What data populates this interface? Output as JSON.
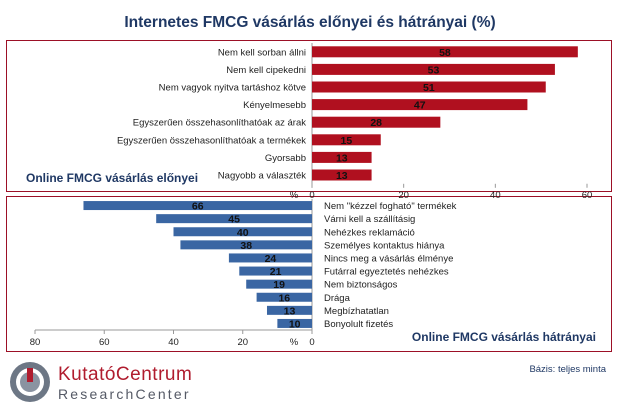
{
  "title": "Internetes FMCG vásárlás előnyei és hátrányai (%)",
  "basis": "Bázis: teljes minta",
  "logo": {
    "line1": "KutatóCentrum",
    "line2": "ResearchCenter"
  },
  "colors": {
    "advantages": "#b0101f",
    "disadvantages": "#3a66a3",
    "border": "#9c1026",
    "title": "#1f3864"
  },
  "chart_data": [
    {
      "type": "bar",
      "orientation": "horizontal",
      "panel_label": "Online FMCG vásárlás előnyei",
      "unit_label": "%",
      "categories": [
        "Nem kell sorban állni",
        "Nem kell cipekedni",
        "Nem vagyok nyitva tartáshoz kötve",
        "Kényelmesebb",
        "Egyszerűen összehasonlíthatóak az árak",
        "Egyszerűen összehasonlíthatóak a termékek",
        "Gyorsabb",
        "Nagyobb a választék"
      ],
      "values": [
        58,
        53,
        51,
        47,
        28,
        15,
        13,
        13
      ],
      "xlim": [
        0,
        60
      ],
      "ticks": [
        0,
        20,
        40,
        60
      ],
      "color": "#b0101f"
    },
    {
      "type": "bar",
      "orientation": "horizontal",
      "direction": "leftward",
      "panel_label": "Online FMCG vásárlás hátrányai",
      "unit_label": "%",
      "categories": [
        "Nem \"kézzel fogható\" termékek",
        "Várni kell a szállításig",
        "Nehézkes reklamáció",
        "Személyes kontaktus hiánya",
        "Nincs meg a vásárlás élménye",
        "Futárral egyeztetés nehézkes",
        "Nem biztonságos",
        "Drága",
        "Megbízhatatlan",
        "Bonyolult fizetés"
      ],
      "values": [
        66,
        45,
        40,
        38,
        24,
        21,
        19,
        16,
        13,
        10
      ],
      "xlim": [
        0,
        80
      ],
      "ticks": [
        80,
        60,
        40,
        20,
        0
      ],
      "color": "#3a66a3"
    }
  ]
}
